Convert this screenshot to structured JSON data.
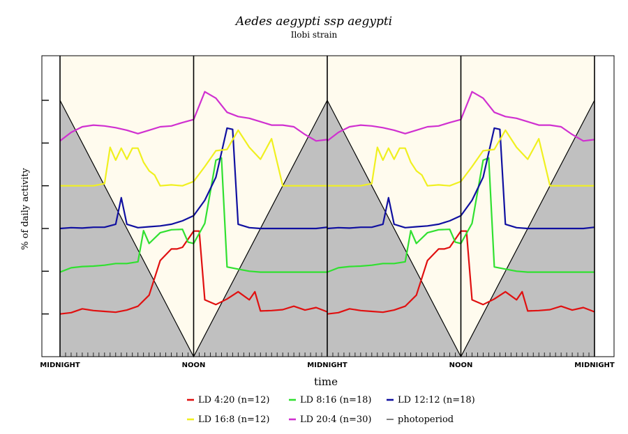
{
  "chart_data": {
    "type": "line",
    "title": "Aedes aegypti ssp aegypti",
    "subtitle": "Ilobi strain",
    "xlabel": "time",
    "ylabel": "% of daily activity",
    "x_tick_labels": [
      "MIDNIGHT",
      "NOON",
      "MIDNIGHT",
      "NOON",
      "MIDNIGHT"
    ],
    "x_unit": "hours",
    "xlim": [
      0,
      48
    ],
    "ylim": [
      0,
      6
    ],
    "y_ticks": [
      1,
      2,
      3,
      4,
      5,
      6
    ],
    "grid": false,
    "legend_position": "bottom",
    "background": {
      "light": "#fffbee",
      "dark": "#c0c0c0"
    },
    "photoperiod": {
      "name": "photoperiod",
      "color": "#000000",
      "description_points": [
        [
          0,
          6
        ],
        [
          12,
          0
        ],
        [
          24,
          6
        ],
        [
          36,
          0
        ],
        [
          48,
          6
        ]
      ]
    },
    "series": [
      {
        "name": "LD 4:20 (n=12)",
        "color": "#e01010",
        "x": [
          0,
          1,
          2,
          3,
          4,
          5,
          6,
          7,
          8,
          9,
          10,
          10.5,
          11,
          12,
          12.5,
          13,
          14,
          15,
          16,
          17,
          17.5,
          18,
          19,
          20,
          21,
          22,
          23,
          24
        ],
        "values": [
          1.0,
          1.03,
          1.12,
          1.08,
          1.06,
          1.04,
          1.09,
          1.18,
          1.44,
          2.25,
          2.52,
          2.52,
          2.56,
          2.94,
          2.94,
          1.33,
          1.22,
          1.35,
          1.52,
          1.33,
          1.52,
          1.07,
          1.08,
          1.1,
          1.18,
          1.09,
          1.15,
          1.05
        ]
      },
      {
        "name": "LD 8:16 (n=18)",
        "color": "#30e030",
        "x": [
          0,
          1,
          2,
          3,
          4,
          5,
          6,
          7,
          7.5,
          8,
          9,
          10,
          11,
          11.5,
          12,
          13,
          14,
          14.5,
          15,
          16,
          17,
          18,
          19,
          20,
          21,
          22,
          23,
          24
        ],
        "values": [
          1.98,
          2.08,
          2.11,
          2.12,
          2.14,
          2.18,
          2.18,
          2.22,
          2.95,
          2.65,
          2.9,
          2.97,
          2.98,
          2.68,
          2.65,
          3.12,
          4.6,
          4.65,
          2.1,
          2.05,
          2.0,
          1.98,
          1.98,
          1.98,
          1.98,
          1.98,
          1.98,
          1.98
        ]
      },
      {
        "name": "LD 12:12 (n=18)",
        "color": "#1010a0",
        "x": [
          0,
          1,
          2,
          3,
          4,
          5,
          5.5,
          6,
          7,
          8,
          9,
          10,
          11,
          12,
          13,
          14,
          15,
          15.5,
          16,
          17,
          18,
          19,
          20,
          21,
          22,
          23,
          24
        ],
        "values": [
          3.0,
          3.02,
          3.01,
          3.03,
          3.03,
          3.1,
          3.72,
          3.1,
          3.02,
          3.04,
          3.06,
          3.1,
          3.18,
          3.3,
          3.66,
          4.2,
          5.35,
          5.32,
          3.1,
          3.02,
          3.0,
          3.0,
          3.0,
          3.0,
          3.0,
          3.0,
          3.03
        ]
      },
      {
        "name": "LD 16:8 (n=12)",
        "color": "#f0f020",
        "x": [
          0,
          1,
          2,
          3,
          4,
          4.5,
          5,
          5.5,
          6,
          6.5,
          7,
          7.5,
          8,
          8.5,
          9,
          10,
          11,
          12,
          13,
          14,
          15,
          16,
          17,
          18,
          19,
          20,
          21,
          22,
          23,
          24
        ],
        "values": [
          4.0,
          4.0,
          4.0,
          4.0,
          4.05,
          4.9,
          4.6,
          4.88,
          4.62,
          4.88,
          4.88,
          4.55,
          4.35,
          4.25,
          4.0,
          4.02,
          4.0,
          4.1,
          4.45,
          4.82,
          4.85,
          5.3,
          4.9,
          4.62,
          5.1,
          4.0,
          4.0,
          4.0,
          4.0,
          4.0
        ]
      },
      {
        "name": "LD 20:4 (n=30)",
        "color": "#d030d0",
        "x": [
          0,
          1,
          2,
          3,
          4,
          5,
          6,
          7,
          8,
          9,
          10,
          11,
          12,
          13,
          14,
          15,
          16,
          17,
          18,
          19,
          20,
          21,
          22,
          23,
          24
        ],
        "values": [
          5.05,
          5.25,
          5.38,
          5.42,
          5.4,
          5.36,
          5.3,
          5.22,
          5.3,
          5.38,
          5.4,
          5.48,
          5.55,
          6.2,
          6.05,
          5.72,
          5.62,
          5.58,
          5.5,
          5.42,
          5.42,
          5.38,
          5.2,
          5.05,
          5.08
        ]
      }
    ]
  }
}
